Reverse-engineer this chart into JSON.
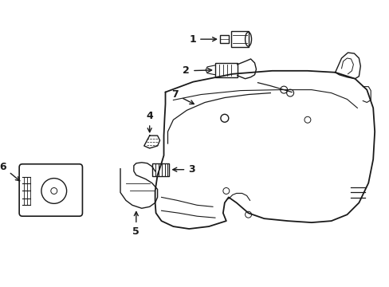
{
  "background_color": "#ffffff",
  "line_color": "#1a1a1a",
  "line_width": 1.0,
  "label_fontsize": 9,
  "figsize": [
    4.89,
    3.6
  ],
  "dpi": 100
}
